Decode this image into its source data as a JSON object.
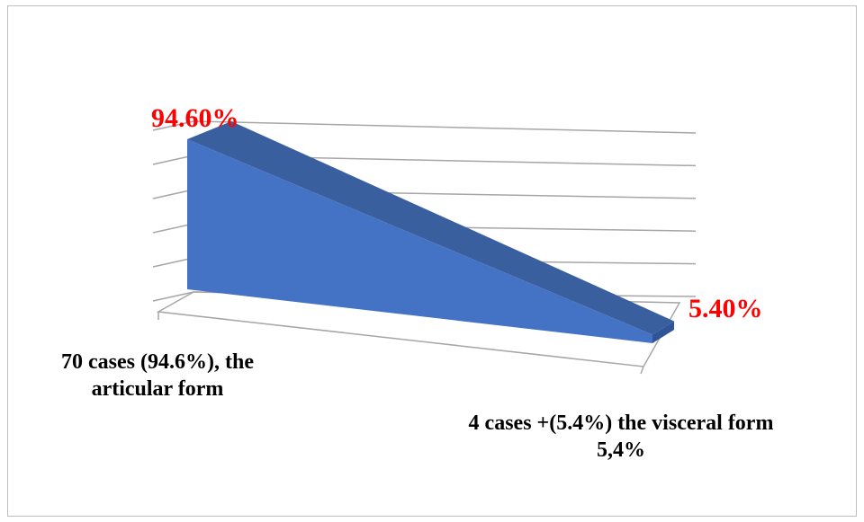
{
  "chart_data": {
    "type": "area",
    "style": "3d",
    "categories": [
      "70 cases (94.6%), the articular form",
      "4 cases +(5.4%) the visceral form 5,4%"
    ],
    "series": [
      {
        "values": [
          94.6,
          5.4
        ]
      }
    ],
    "data_labels": [
      "94.60%",
      "5.40%"
    ],
    "ylim": [
      0,
      100
    ],
    "grid": true,
    "legend": "none",
    "colors": {
      "front": "#4472c4",
      "top": "#3a5f9f",
      "side": "#2f5597",
      "gridline": "#a6a6a6",
      "data_label": "#ff0000"
    }
  }
}
